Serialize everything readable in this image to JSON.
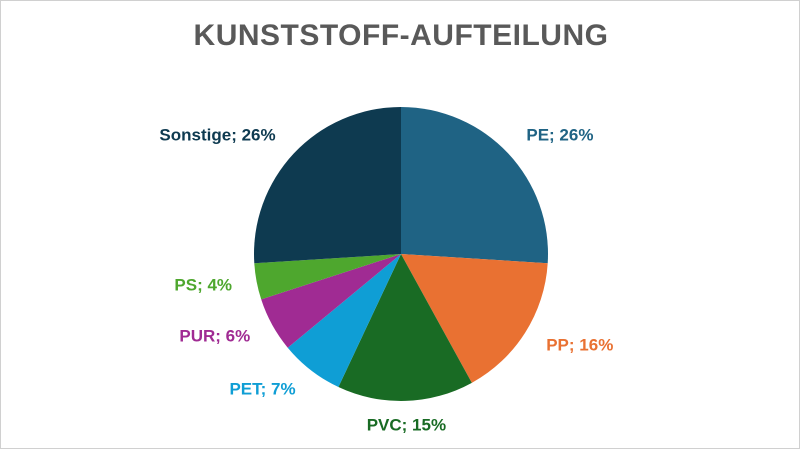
{
  "chart_data": {
    "type": "pie",
    "title": "KUNSTSTOFF-AUFTEILUNG",
    "slices": [
      {
        "label": "PE",
        "value": 26,
        "display": "PE; 26%",
        "color": "#1f6384"
      },
      {
        "label": "PP",
        "value": 16,
        "display": "PP; 16%",
        "color": "#e97132"
      },
      {
        "label": "PVC",
        "value": 15,
        "display": "PVC; 15%",
        "color": "#196b24"
      },
      {
        "label": "PET",
        "value": 7,
        "display": "PET; 7%",
        "color": "#0f9ed5"
      },
      {
        "label": "PUR",
        "value": 6,
        "display": "PUR; 6%",
        "color": "#a02b93"
      },
      {
        "label": "PS",
        "value": 4,
        "display": "PS; 4%",
        "color": "#4ea72e"
      },
      {
        "label": "Sonstige",
        "value": 26,
        "display": "Sonstige; 26%",
        "color": "#0e3a50"
      }
    ],
    "legend": "none",
    "data_labels": "outside"
  }
}
